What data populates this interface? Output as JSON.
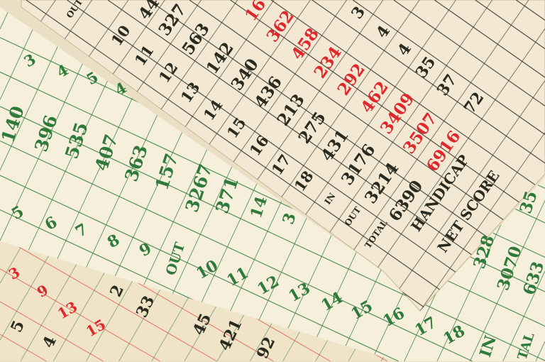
{
  "colors": {
    "background": "#eadfc4",
    "top_card": "#f2e8d3",
    "green_card": "#f5efdc",
    "bottom_card": "#efe3c8",
    "dark_ink": "#2a2a1e",
    "red_ink": "#e0282c",
    "green_ink": "#2f7a3a"
  },
  "top_card": {
    "hole_labels": [
      "OUT",
      "10",
      "11",
      "12",
      "13",
      "14",
      "15",
      "16",
      "17",
      "18",
      "IN",
      "OUT",
      "TOTAL"
    ],
    "yardage_dark": [
      "44",
      "327",
      "563",
      "142",
      "340",
      "436",
      "213",
      "275",
      "431",
      "3176",
      "3214",
      "6390"
    ],
    "yardage_red": [
      "16",
      "362",
      "458",
      "234",
      "292",
      "462",
      "3409",
      "3507",
      "6916"
    ],
    "par": [
      "3",
      "4",
      "4",
      "35",
      "37",
      "72"
    ],
    "handicap_label": "HANDICAP",
    "net_score_label": "NET SCORE"
  },
  "green_card": {
    "par_row": [
      "3",
      "4",
      "5",
      "4"
    ],
    "yardage_row": [
      "140",
      "396",
      "535",
      "407",
      "363",
      "157",
      "3267",
      "371"
    ],
    "extra": [
      "14",
      "3"
    ],
    "hole_row": [
      "5",
      "6",
      "7",
      "8",
      "9",
      "OUT",
      "10",
      "11",
      "12",
      "13",
      "14",
      "15",
      "16",
      "17",
      "18",
      "IN"
    ],
    "right_side": [
      "35",
      "328",
      "3070",
      "633",
      "TAL"
    ]
  },
  "bottom_card": {
    "red": [
      "3",
      "9",
      "13",
      "15"
    ],
    "dark": [
      "5",
      "4",
      "2",
      "33",
      "45",
      "421",
      "92"
    ]
  }
}
